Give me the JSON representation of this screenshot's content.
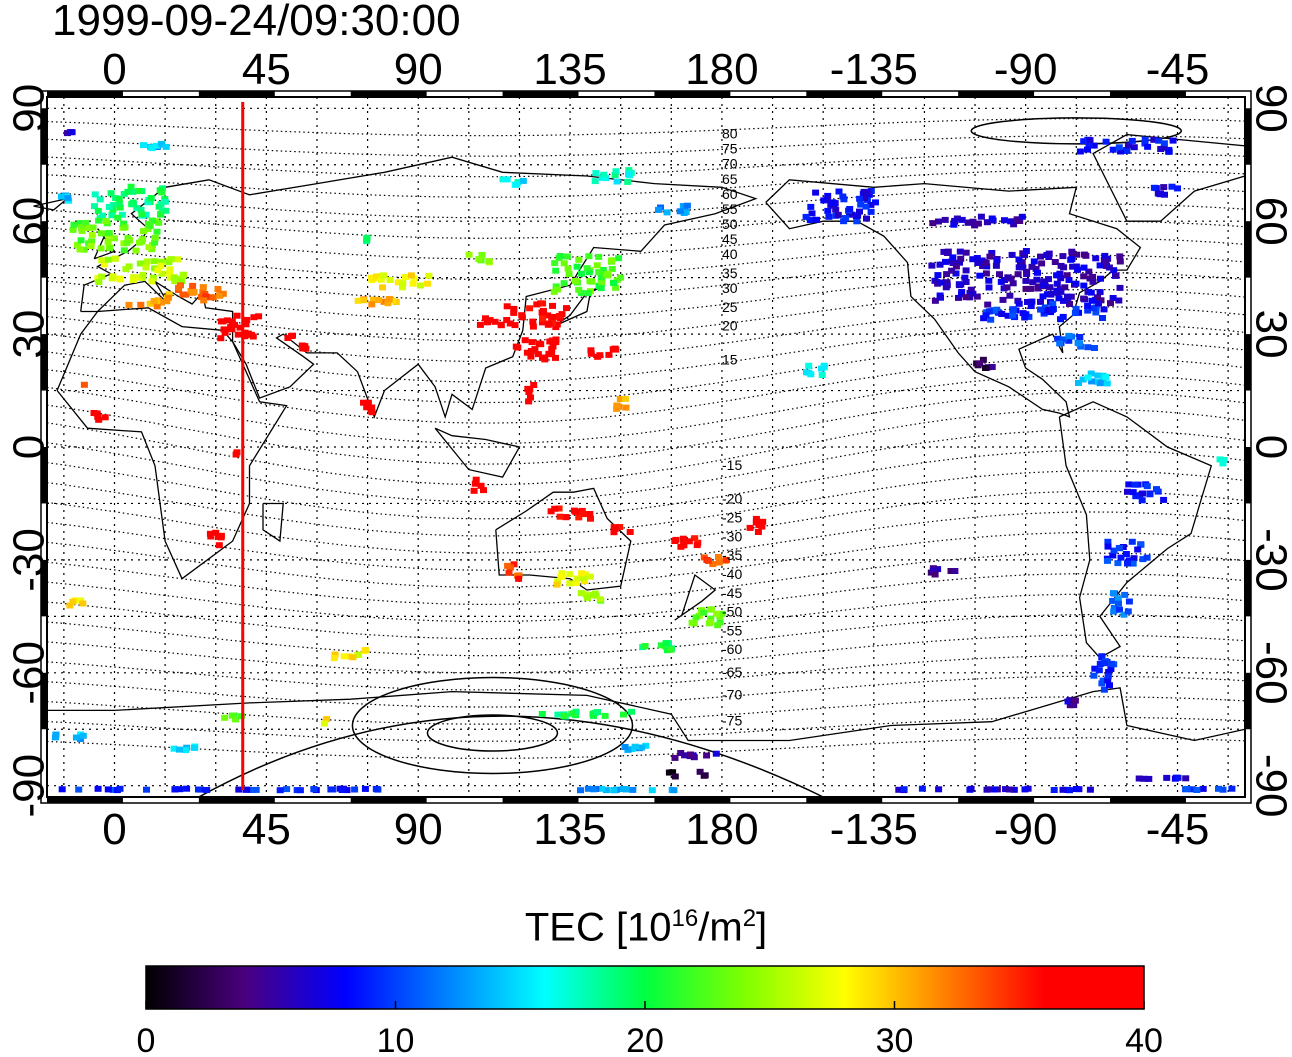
{
  "timestamp": "1999-09-24/09:30:00",
  "map": {
    "lon_min": -20,
    "lon_max": 335,
    "lat_min": -93,
    "lat_max": 93,
    "lon_ticks": [
      0,
      45,
      90,
      135,
      180,
      225,
      270,
      315
    ],
    "lon_tick_labels": [
      "0",
      "45",
      "90",
      "135",
      "180",
      "-135",
      "-90",
      "-45"
    ],
    "lat_ticks": [
      90,
      60,
      30,
      0,
      -30,
      -60,
      -90
    ],
    "lat_tick_labels": [
      "90",
      "60",
      "30",
      "0",
      "-30",
      "-60",
      "-90"
    ],
    "terminator_lon": 38,
    "terminator_color": "#ff0000",
    "grid": true
  },
  "contour_labels": [
    {
      "label": "80",
      "lat": 83
    },
    {
      "label": "75",
      "lat": 79
    },
    {
      "label": "70",
      "lat": 75
    },
    {
      "label": "65",
      "lat": 71
    },
    {
      "label": "60",
      "lat": 67
    },
    {
      "label": "55",
      "lat": 63
    },
    {
      "label": "50",
      "lat": 59
    },
    {
      "label": "45",
      "lat": 55
    },
    {
      "label": "40",
      "lat": 51
    },
    {
      "label": "35",
      "lat": 46
    },
    {
      "label": "30",
      "lat": 42
    },
    {
      "label": "25",
      "lat": 37
    },
    {
      "label": "20",
      "lat": 32
    },
    {
      "label": "15",
      "lat": 23
    },
    {
      "label": "-15",
      "lat": -5
    },
    {
      "label": "-20",
      "lat": -14
    },
    {
      "label": "-25",
      "lat": -19
    },
    {
      "label": "-30",
      "lat": -24
    },
    {
      "label": "-35",
      "lat": -29
    },
    {
      "label": "-40",
      "lat": -34
    },
    {
      "label": "-45",
      "lat": -39
    },
    {
      "label": "-50",
      "lat": -44
    },
    {
      "label": "-55",
      "lat": -49
    },
    {
      "label": "-60",
      "lat": -54
    },
    {
      "label": "-65",
      "lat": -60
    },
    {
      "label": "-70",
      "lat": -66
    },
    {
      "label": "-75",
      "lat": -73
    }
  ],
  "colorbar": {
    "title_main": "TEC  [10",
    "title_sup1": "16",
    "title_mid": "/m",
    "title_sup2": "2",
    "title_end": "]",
    "min": 0,
    "max": 40,
    "tick_values": [
      0,
      10,
      20,
      30,
      40
    ],
    "tick_labels": [
      "0",
      "10",
      "20",
      "30",
      "40"
    ],
    "stops": [
      "#000000",
      "#4a0080",
      "#0000ff",
      "#0080ff",
      "#00ffff",
      "#00ff40",
      "#80ff00",
      "#ffff00",
      "#ff8000",
      "#ff0000",
      "#ff0000"
    ]
  },
  "tec_regions": [
    {
      "lon": -12,
      "lat": 84,
      "w": 6,
      "h": 3,
      "tec": 6
    },
    {
      "lon": 10,
      "lat": 80,
      "w": 14,
      "h": 3,
      "tec": 14
    },
    {
      "lon": -14,
      "lat": 66,
      "w": 6,
      "h": 4,
      "tec": 14
    },
    {
      "lon": 5,
      "lat": 65,
      "w": 24,
      "h": 10,
      "tec": 19
    },
    {
      "lon": 0,
      "lat": 56,
      "w": 28,
      "h": 10,
      "tec": 23
    },
    {
      "lon": 8,
      "lat": 47,
      "w": 28,
      "h": 8,
      "tec": 26
    },
    {
      "lon": 25,
      "lat": 41,
      "w": 18,
      "h": 6,
      "tec": 33
    },
    {
      "lon": 10,
      "lat": 39,
      "w": 14,
      "h": 5,
      "tec": 31
    },
    {
      "lon": 37,
      "lat": 32,
      "w": 14,
      "h": 8,
      "tec": 39
    },
    {
      "lon": 52,
      "lat": 30,
      "w": 4,
      "h": 4,
      "tec": 38
    },
    {
      "lon": 55,
      "lat": 26,
      "w": 5,
      "h": 4,
      "tec": 38
    },
    {
      "lon": -9,
      "lat": 17,
      "w": 2,
      "h": 3,
      "tec": 34
    },
    {
      "lon": -5,
      "lat": 8,
      "w": 6,
      "h": 4,
      "tec": 38
    },
    {
      "lon": 36,
      "lat": -1,
      "w": 2,
      "h": 4,
      "tec": 36
    },
    {
      "lon": 30,
      "lat": -25,
      "w": 6,
      "h": 6,
      "tec": 38
    },
    {
      "lon": -12,
      "lat": -41,
      "w": 7,
      "h": 4,
      "tec": 28
    },
    {
      "lon": 70,
      "lat": -55,
      "w": 12,
      "h": 4,
      "tec": 28
    },
    {
      "lon": 75,
      "lat": 55,
      "w": 5,
      "h": 3,
      "tec": 20
    },
    {
      "lon": 85,
      "lat": 44,
      "w": 20,
      "h": 5,
      "tec": 28
    },
    {
      "lon": 78,
      "lat": 39,
      "w": 14,
      "h": 4,
      "tec": 31
    },
    {
      "lon": 75,
      "lat": 10,
      "w": 5,
      "h": 6,
      "tec": 38
    },
    {
      "lon": 108,
      "lat": 50,
      "w": 8,
      "h": 4,
      "tec": 24
    },
    {
      "lon": 118,
      "lat": 70,
      "w": 8,
      "h": 4,
      "tec": 16
    },
    {
      "lon": 148,
      "lat": 72,
      "w": 14,
      "h": 5,
      "tec": 17
    },
    {
      "lon": 165,
      "lat": 63,
      "w": 12,
      "h": 4,
      "tec": 13
    },
    {
      "lon": 140,
      "lat": 46,
      "w": 22,
      "h": 12,
      "tec": 22
    },
    {
      "lon": 125,
      "lat": 35,
      "w": 20,
      "h": 8,
      "tec": 37
    },
    {
      "lon": 125,
      "lat": 26,
      "w": 14,
      "h": 8,
      "tec": 40
    },
    {
      "lon": 112,
      "lat": 33,
      "w": 10,
      "h": 4,
      "tec": 38
    },
    {
      "lon": 145,
      "lat": 25,
      "w": 10,
      "h": 4,
      "tec": 38
    },
    {
      "lon": 123,
      "lat": 14,
      "w": 4,
      "h": 8,
      "tec": 38
    },
    {
      "lon": 150,
      "lat": 12,
      "w": 5,
      "h": 6,
      "tec": 30
    },
    {
      "lon": 108,
      "lat": -10,
      "w": 5,
      "h": 5,
      "tec": 38
    },
    {
      "lon": 135,
      "lat": -18,
      "w": 14,
      "h": 5,
      "tec": 37
    },
    {
      "lon": 150,
      "lat": -22,
      "w": 8,
      "h": 4,
      "tec": 37
    },
    {
      "lon": 118,
      "lat": -33,
      "w": 6,
      "h": 6,
      "tec": 34
    },
    {
      "lon": 135,
      "lat": -35,
      "w": 14,
      "h": 5,
      "tec": 28
    },
    {
      "lon": 140,
      "lat": -40,
      "w": 10,
      "h": 4,
      "tec": 24
    },
    {
      "lon": 170,
      "lat": -25,
      "w": 10,
      "h": 5,
      "tec": 37
    },
    {
      "lon": 178,
      "lat": -30,
      "w": 10,
      "h": 4,
      "tec": 33
    },
    {
      "lon": 175,
      "lat": -45,
      "w": 12,
      "h": 7,
      "tec": 23
    },
    {
      "lon": 160,
      "lat": -53,
      "w": 12,
      "h": 4,
      "tec": 20
    },
    {
      "lon": 190,
      "lat": -21,
      "w": 6,
      "h": 6,
      "tec": 37
    },
    {
      "lon": 208,
      "lat": 20,
      "w": 8,
      "h": 5,
      "tec": 15
    },
    {
      "lon": 215,
      "lat": 64,
      "w": 24,
      "h": 10,
      "tec": 8
    },
    {
      "lon": 270,
      "lat": 45,
      "w": 58,
      "h": 16,
      "tec": 6
    },
    {
      "lon": 275,
      "lat": 36,
      "w": 40,
      "h": 6,
      "tec": 9
    },
    {
      "lon": 285,
      "lat": 28,
      "w": 14,
      "h": 5,
      "tec": 11
    },
    {
      "lon": 290,
      "lat": 18,
      "w": 12,
      "h": 5,
      "tec": 14
    },
    {
      "lon": 258,
      "lat": 22,
      "w": 10,
      "h": 4,
      "tec": 3
    },
    {
      "lon": 300,
      "lat": 80,
      "w": 30,
      "h": 5,
      "tec": 8
    },
    {
      "lon": 255,
      "lat": 60,
      "w": 30,
      "h": 4,
      "tec": 6
    },
    {
      "lon": 312,
      "lat": 68,
      "w": 12,
      "h": 4,
      "tec": 7
    },
    {
      "lon": 328,
      "lat": -4,
      "w": 4,
      "h": 4,
      "tec": 18
    },
    {
      "lon": 305,
      "lat": -12,
      "w": 14,
      "h": 6,
      "tec": 8
    },
    {
      "lon": 300,
      "lat": -28,
      "w": 14,
      "h": 8,
      "tec": 9
    },
    {
      "lon": 298,
      "lat": -42,
      "w": 8,
      "h": 8,
      "tec": 11
    },
    {
      "lon": 293,
      "lat": -60,
      "w": 8,
      "h": 12,
      "tec": 9
    },
    {
      "lon": 283,
      "lat": -68,
      "w": 6,
      "h": 4,
      "tec": 6
    },
    {
      "lon": 246,
      "lat": -33,
      "w": 10,
      "h": 4,
      "tec": 5
    },
    {
      "lon": -13,
      "lat": -77,
      "w": 12,
      "h": 3,
      "tec": 14
    },
    {
      "lon": 20,
      "lat": -80,
      "w": 10,
      "h": 3,
      "tec": 14
    },
    {
      "lon": 35,
      "lat": -72,
      "w": 8,
      "h": 3,
      "tec": 22
    },
    {
      "lon": 62,
      "lat": -73,
      "w": 4,
      "h": 3,
      "tec": 28
    },
    {
      "lon": 140,
      "lat": -71,
      "w": 30,
      "h": 3,
      "tec": 20
    },
    {
      "lon": 155,
      "lat": -80,
      "w": 12,
      "h": 3,
      "tec": 13
    },
    {
      "lon": 172,
      "lat": -82,
      "w": 16,
      "h": 3,
      "tec": 6
    },
    {
      "lon": 170,
      "lat": -87,
      "w": 14,
      "h": 3,
      "tec": 1
    },
    {
      "lon": 30,
      "lat": -91,
      "w": 100,
      "h": 2,
      "tec": 9
    },
    {
      "lon": 150,
      "lat": -91,
      "w": 40,
      "h": 2,
      "tec": 13
    },
    {
      "lon": 260,
      "lat": -91,
      "w": 60,
      "h": 2,
      "tec": 7
    },
    {
      "lon": 310,
      "lat": -88,
      "w": 20,
      "h": 2,
      "tec": 7
    },
    {
      "lon": 325,
      "lat": -91,
      "w": 20,
      "h": 2,
      "tec": 9
    }
  ]
}
